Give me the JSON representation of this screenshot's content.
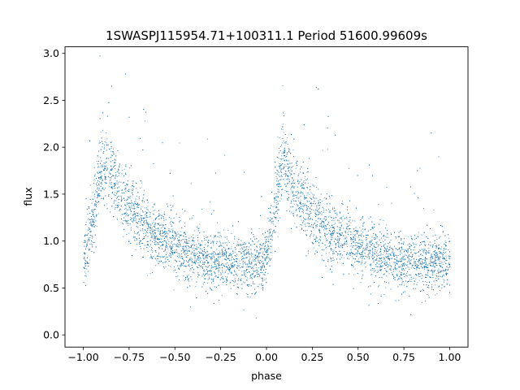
{
  "chart_data": {
    "type": "scatter",
    "title": "1SWASPJ115954.71+100311.1 Period 51600.99609s",
    "xlabel": "phase",
    "ylabel": "flux",
    "xlim": [
      -1.1,
      1.1
    ],
    "ylim": [
      -0.13,
      3.07
    ],
    "xticks": [
      -1.0,
      -0.75,
      -0.5,
      -0.25,
      0.0,
      0.25,
      0.5,
      0.75,
      1.0
    ],
    "xtick_labels": [
      "−1.00",
      "−0.75",
      "−0.50",
      "−0.25",
      "0.00",
      "0.25",
      "0.50",
      "0.75",
      "1.00"
    ],
    "yticks": [
      0.0,
      0.5,
      1.0,
      1.5,
      2.0,
      2.5,
      3.0
    ],
    "ytick_labels": [
      "0.0",
      "0.5",
      "1.0",
      "1.5",
      "2.0",
      "2.5",
      "3.0"
    ],
    "grid": false,
    "legend": "none",
    "marker_color": "#1f77b4",
    "description_curve": {
      "phase": [
        -1.0,
        -0.97,
        -0.94,
        -0.91,
        -0.88,
        -0.85,
        -0.8,
        -0.7,
        -0.6,
        -0.5,
        -0.4,
        -0.3,
        -0.2,
        -0.1,
        -0.05,
        0.0,
        0.03,
        0.06,
        0.09,
        0.12,
        0.15,
        0.2,
        0.3,
        0.4,
        0.5,
        0.6,
        0.7,
        0.8,
        0.9,
        0.95,
        1.0
      ],
      "flux": [
        0.78,
        1.05,
        1.38,
        1.7,
        1.85,
        1.72,
        1.5,
        1.25,
        1.07,
        0.95,
        0.86,
        0.8,
        0.77,
        0.76,
        0.78,
        0.8,
        1.15,
        1.55,
        1.85,
        1.72,
        1.55,
        1.4,
        1.2,
        1.05,
        0.93,
        0.85,
        0.8,
        0.77,
        0.76,
        0.77,
        0.8
      ]
    }
  }
}
